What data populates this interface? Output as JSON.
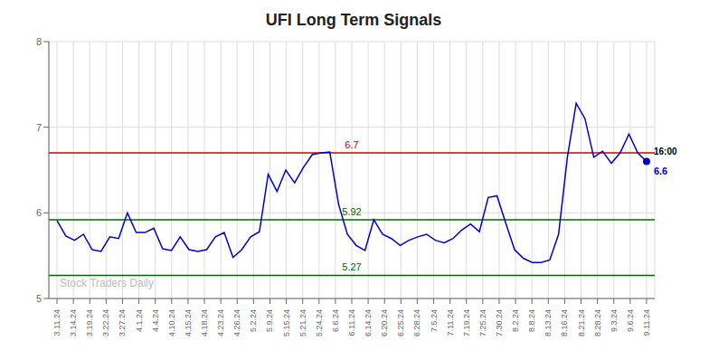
{
  "chart_data": {
    "type": "line",
    "title": "UFI Long Term Signals",
    "color": "#0000cc",
    "grid": true,
    "xlim": [
      -0.5,
      36.5
    ],
    "xticks": [
      {
        "value": 0,
        "label": "3.11.24"
      },
      {
        "value": 1,
        "label": "3.14.24"
      },
      {
        "value": 2,
        "label": "3.19.24"
      },
      {
        "value": 3,
        "label": "3.22.24"
      },
      {
        "value": 4,
        "label": "3.27.24"
      },
      {
        "value": 5,
        "label": "4.1.24"
      },
      {
        "value": 6,
        "label": "4.4.24"
      },
      {
        "value": 7,
        "label": "4.10.24"
      },
      {
        "value": 8,
        "label": "4.15.24"
      },
      {
        "value": 9,
        "label": "4.18.24"
      },
      {
        "value": 10,
        "label": "4.23.24"
      },
      {
        "value": 11,
        "label": "4.26.24"
      },
      {
        "value": 12,
        "label": "5.2.24"
      },
      {
        "value": 13,
        "label": "5.9.24"
      },
      {
        "value": 14,
        "label": "5.15.24"
      },
      {
        "value": 15,
        "label": "5.21.24"
      },
      {
        "value": 16,
        "label": "5.24.24"
      },
      {
        "value": 17,
        "label": "6.6.24"
      },
      {
        "value": 18,
        "label": "6.11.24"
      },
      {
        "value": 19,
        "label": "6.14.24"
      },
      {
        "value": 20,
        "label": "6.20.24"
      },
      {
        "value": 21,
        "label": "6.25.24"
      },
      {
        "value": 22,
        "label": "6.28.24"
      },
      {
        "value": 23,
        "label": "7.5.24"
      },
      {
        "value": 24,
        "label": "7.11.24"
      },
      {
        "value": 25,
        "label": "7.19.24"
      },
      {
        "value": 26,
        "label": "7.25.24"
      },
      {
        "value": 27,
        "label": "7.30.24"
      },
      {
        "value": 28,
        "label": "8.2.24"
      },
      {
        "value": 29,
        "label": "8.8.24"
      },
      {
        "value": 30,
        "label": "8.13.24"
      },
      {
        "value": 31,
        "label": "8.16.24"
      },
      {
        "value": 32,
        "label": "8.21.24"
      },
      {
        "value": 33,
        "label": "8.28.24"
      },
      {
        "value": 34,
        "label": "9.3.24"
      },
      {
        "value": 35,
        "label": "9.6.24"
      },
      {
        "value": 36,
        "label": "9.11.24"
      }
    ],
    "ylim": [
      5.0,
      8.0
    ],
    "yticks": [
      5,
      6,
      7,
      8
    ],
    "x": [
      0,
      0.5373,
      1.0746,
      1.6119,
      2.1493,
      2.6866,
      3.2239,
      3.7612,
      4.2985,
      4.8358,
      5.3731,
      5.9104,
      6.4478,
      6.9851,
      7.5224,
      8.0597,
      8.597,
      9.1343,
      9.6716,
      10.209,
      10.7463,
      11.2836,
      11.8209,
      12.3582,
      12.8955,
      13.4328,
      13.9701,
      14.5075,
      15.0448,
      15.5821,
      16.1194,
      16.6567,
      17.194,
      17.7313,
      18.2687,
      18.806,
      19.3433,
      19.8806,
      20.4179,
      20.9552,
      21.4925,
      22.0299,
      22.5672,
      23.1045,
      23.6418,
      24.1791,
      24.7164,
      25.2537,
      25.791,
      26.3284,
      26.8657,
      27.403,
      27.9403,
      28.4776,
      29.0149,
      29.5522,
      30.0896,
      30.6269,
      31.1642,
      31.7015,
      32.2388,
      32.7761,
      33.3134,
      33.8507,
      34.3881,
      34.9254,
      35.4627,
      36
    ],
    "values": [
      5.91,
      5.73,
      5.68,
      5.75,
      5.57,
      5.55,
      5.72,
      5.7,
      6.0,
      5.77,
      5.77,
      5.82,
      5.58,
      5.56,
      5.72,
      5.57,
      5.55,
      5.57,
      5.72,
      5.77,
      5.48,
      5.57,
      5.72,
      5.78,
      6.45,
      6.25,
      6.5,
      6.35,
      6.53,
      6.68,
      6.7,
      6.71,
      6.1,
      5.75,
      5.62,
      5.56,
      5.92,
      5.75,
      5.7,
      5.62,
      5.68,
      5.72,
      5.75,
      5.68,
      5.65,
      5.7,
      5.8,
      5.87,
      5.78,
      6.18,
      6.2,
      5.88,
      5.57,
      5.47,
      5.42,
      5.42,
      5.45,
      5.75,
      6.65,
      7.28,
      7.1,
      6.65,
      6.72,
      6.58,
      6.7,
      6.92,
      6.7,
      6.6
    ],
    "hlines": [
      {
        "value": 6.7,
        "label": "6.7",
        "color": "#cc0000"
      },
      {
        "value": 5.92,
        "label": "5.92",
        "color": "#006600"
      },
      {
        "value": 5.27,
        "label": "5.27",
        "color": "#006600"
      }
    ],
    "end_marker": {
      "x": 36,
      "y": 6.6,
      "label": "6.6",
      "note": "16:00",
      "color": "#0000cc"
    },
    "watermark": {
      "text": "Stock Traders Daily",
      "color": "#bbbbbb"
    }
  }
}
